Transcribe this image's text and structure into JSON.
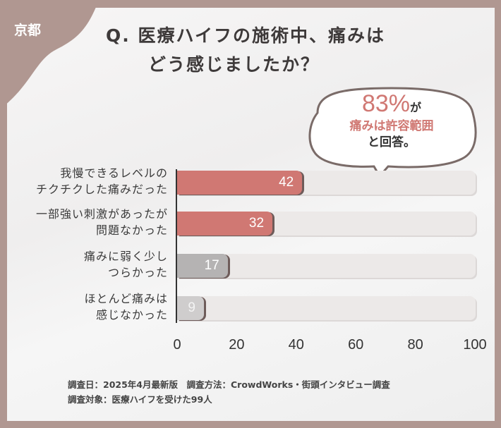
{
  "region": "京都",
  "title": {
    "line1": "Q. 医療ハイフの施術中、痛みは",
    "line2": "どう感じましたか？"
  },
  "callout": {
    "percent": "83%",
    "ga": "が",
    "line2": "痛みは許容範囲",
    "line3": "と回答。"
  },
  "colors": {
    "highlight": "#d07873",
    "muted": "#b5b3b3",
    "light": "#c9c7c7",
    "track": "#ece9e8",
    "frame": "#b09791"
  },
  "chart_data": {
    "type": "bar",
    "orientation": "horizontal",
    "categories": [
      [
        "我慢できるレベルの",
        "チクチクした痛みだった"
      ],
      [
        "一部強い刺激があったが",
        "問題なかった"
      ],
      [
        "痛みに弱く少し",
        "つらかった"
      ],
      [
        "ほとんど痛みは",
        "感じなかった"
      ]
    ],
    "values": [
      42,
      32,
      17,
      9
    ],
    "bar_colors": [
      "#d07873",
      "#d07873",
      "#b5b3b3",
      "#cfcdcd"
    ],
    "xlim": [
      0,
      100
    ],
    "xticks": [
      "0",
      "20",
      "40",
      "60",
      "80",
      "100"
    ],
    "grid": false
  },
  "footer": {
    "line1": "調査日：2025年4月最新版　調査方法：CrowdWorks・街頭インタビュー調査",
    "line2": "調査対象：医療ハイフを受けた99人"
  }
}
